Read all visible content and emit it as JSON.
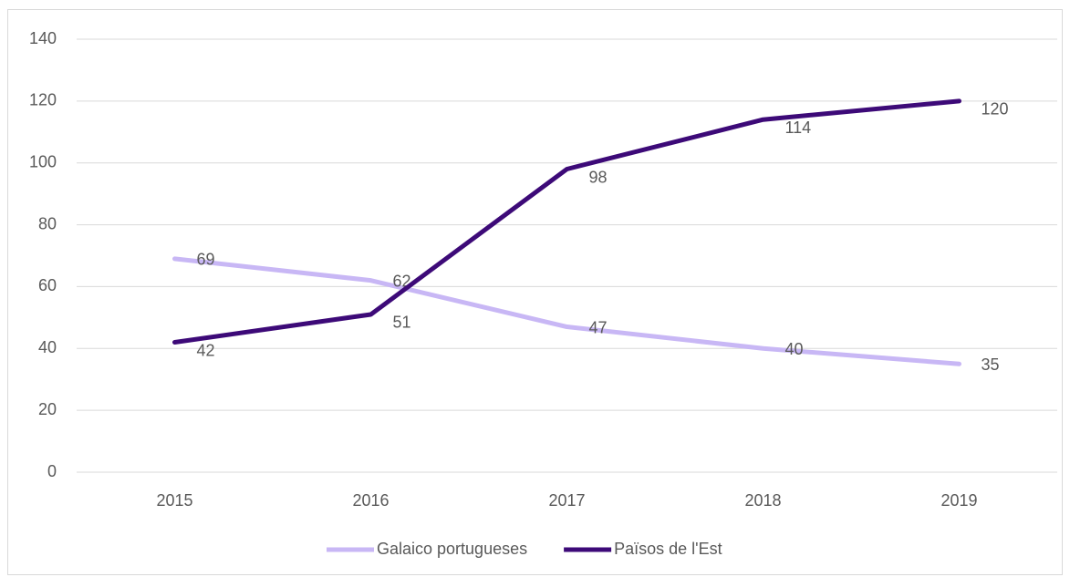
{
  "chart_data": {
    "type": "line",
    "categories": [
      "2015",
      "2016",
      "2017",
      "2018",
      "2019"
    ],
    "series": [
      {
        "name": "Galaico portugueses",
        "color": "#c8b7f5",
        "values": [
          69,
          62,
          47,
          40,
          35
        ]
      },
      {
        "name": "Països de l'Est",
        "color": "#3d0a78",
        "values": [
          42,
          51,
          98,
          114,
          120
        ]
      }
    ],
    "ylim": [
      0,
      140
    ],
    "yticks": [
      0,
      20,
      40,
      60,
      80,
      100,
      120,
      140
    ],
    "grid": true,
    "legend": "bottom"
  }
}
